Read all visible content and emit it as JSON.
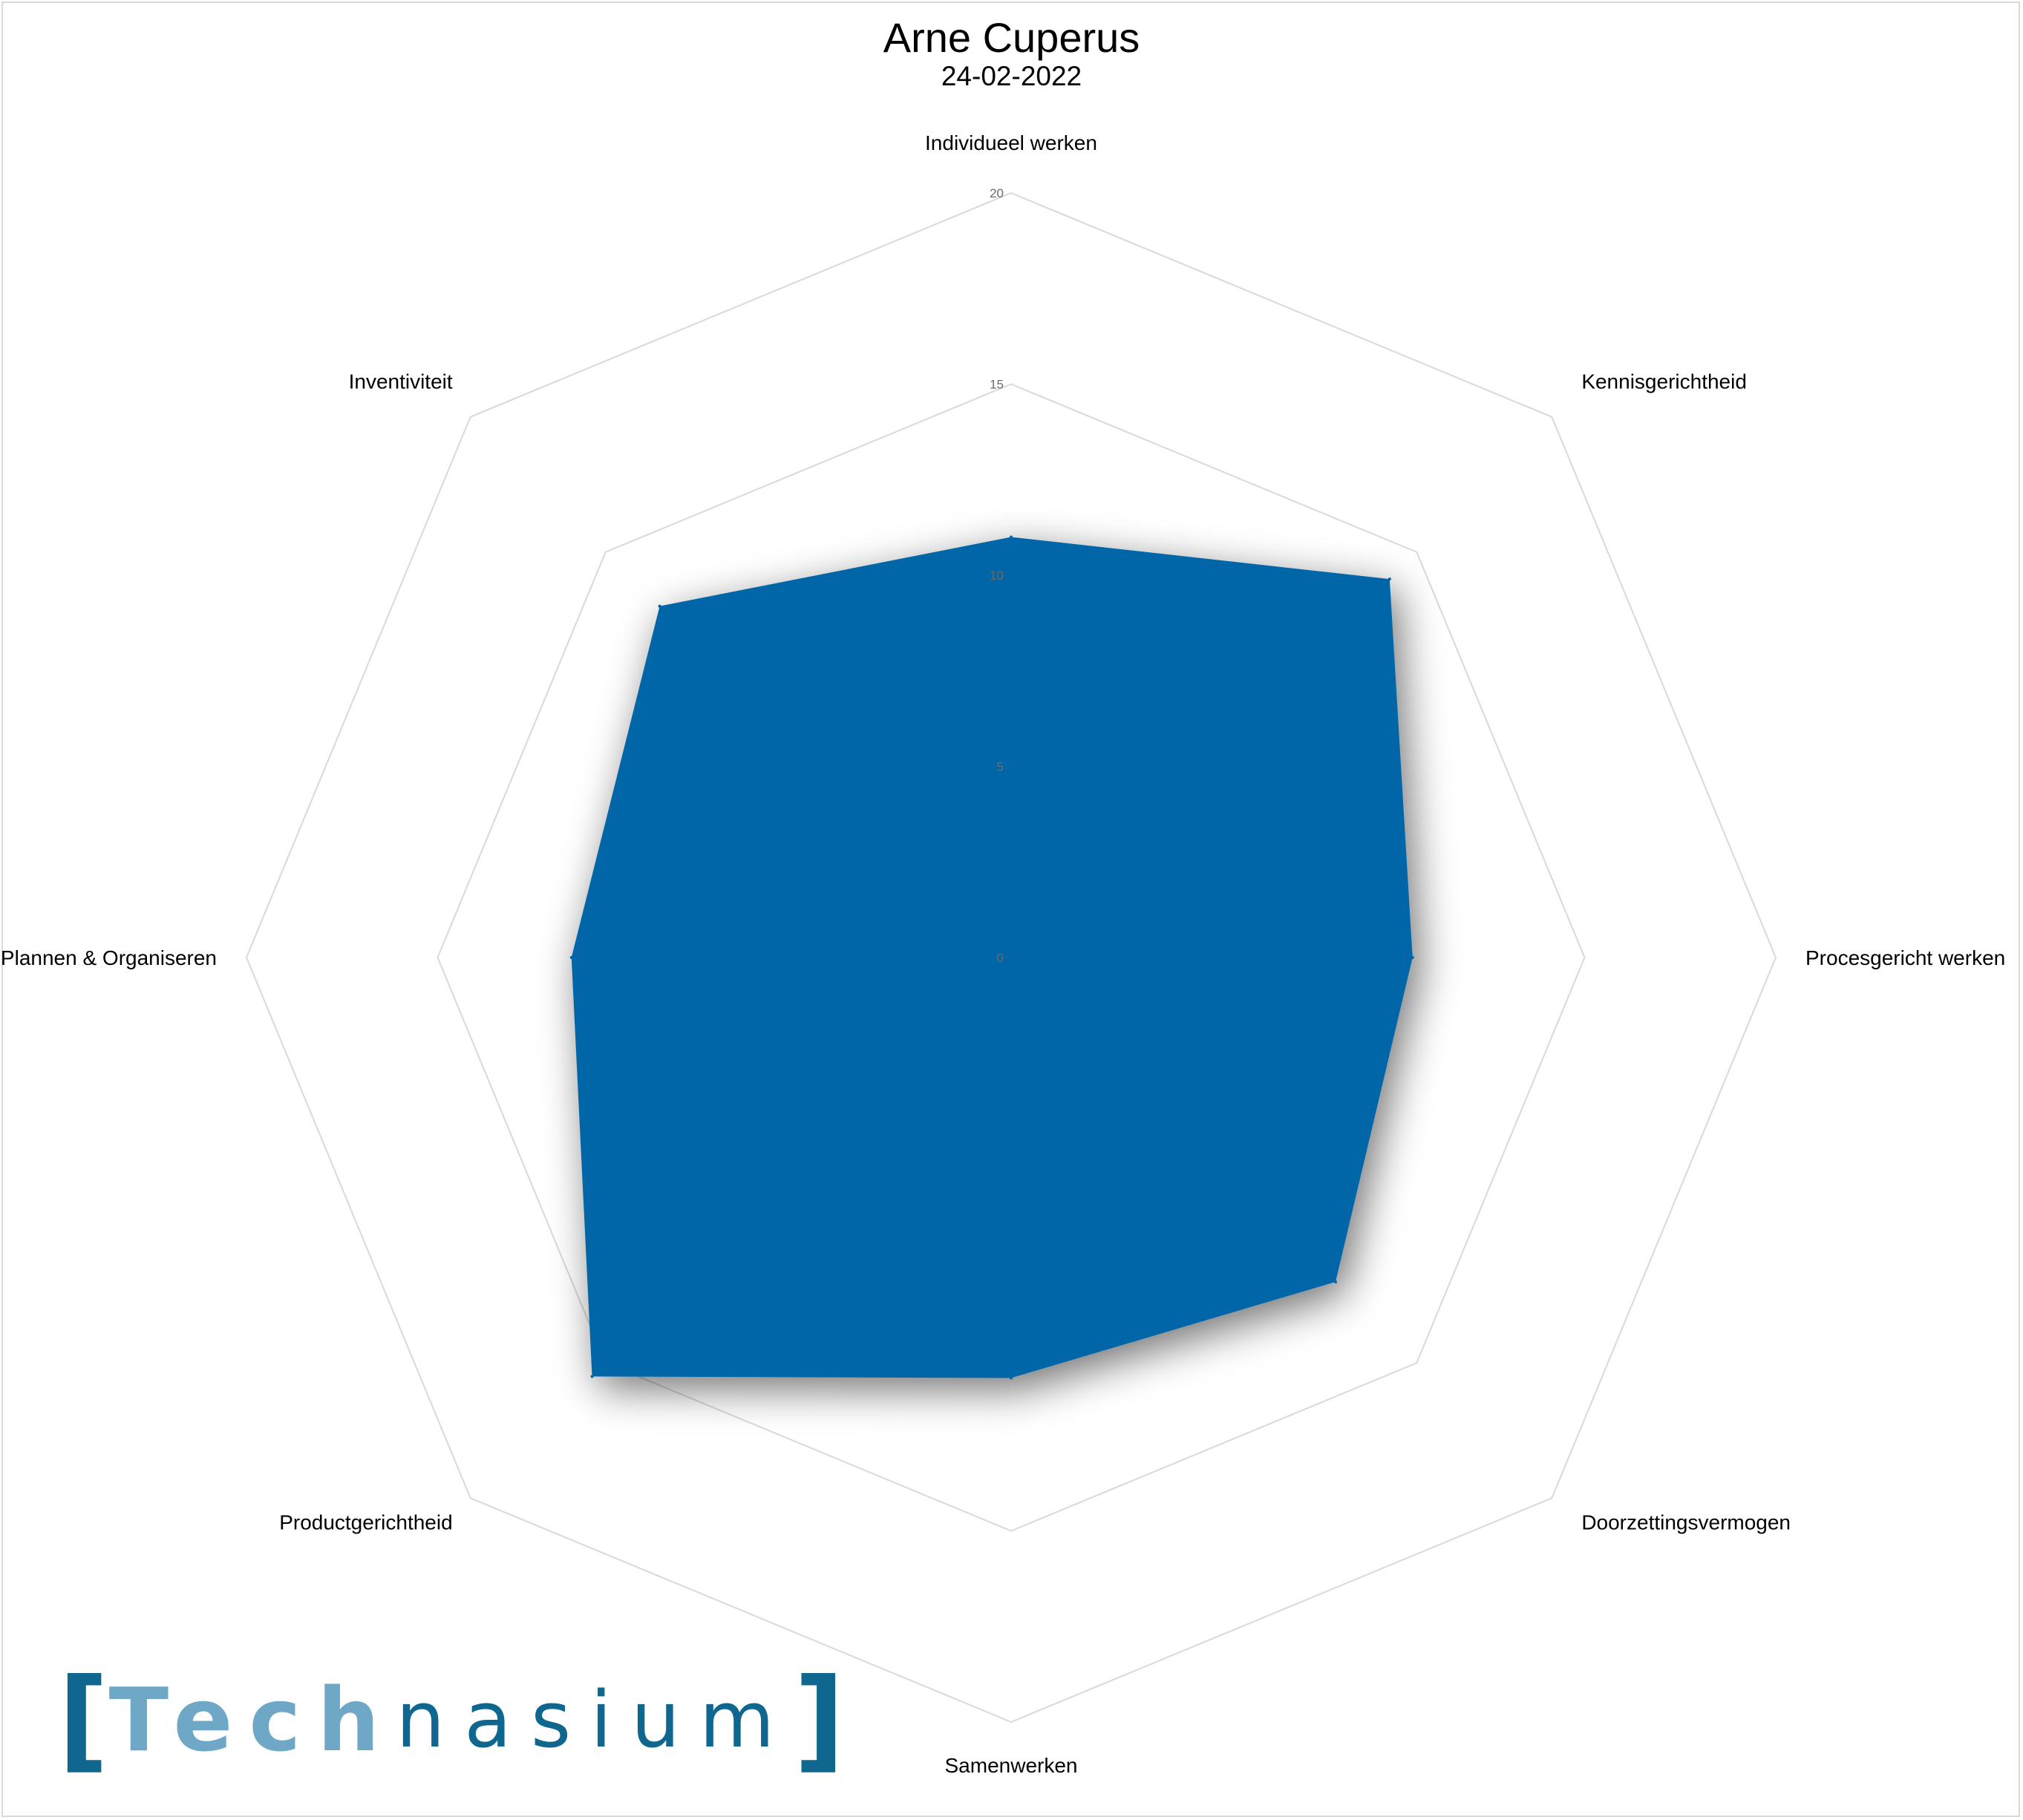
{
  "title": "Arne Cuperus",
  "subtitle": "24-02-2022",
  "logo": {
    "bracket_open": "[",
    "part1": "Tech",
    "part2": "nasium",
    "bracket_close": "]"
  },
  "colors": {
    "fill": "#0066a7",
    "grid": "#d9d9d9",
    "logo_light": "#6fa7c7",
    "logo_dark": "#0f6790"
  },
  "chart_data": {
    "type": "radar",
    "categories": [
      "Individueel werken",
      "Kennisgerichtheid",
      "Procesgericht werken",
      "Doorzettingsvermogen",
      "Samenwerken",
      "Productgerichtheid",
      "Plannen & Organiseren",
      "Inventiviteit"
    ],
    "values": [
      11,
      14,
      10.5,
      12,
      11,
      15.5,
      11.5,
      13
    ],
    "rlim": [
      0,
      20
    ],
    "ticks": [
      "0",
      "5",
      "10",
      "15",
      "20"
    ],
    "grid": true,
    "legend": "none"
  }
}
